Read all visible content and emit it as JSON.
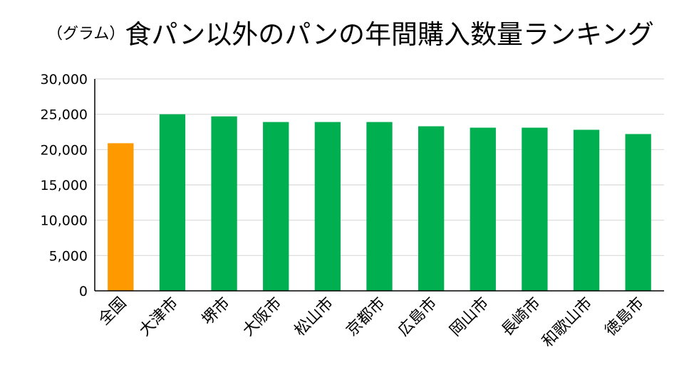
{
  "chart_data": {
    "type": "bar",
    "title": "食パン以外のパンの年間購入数量ランキング",
    "unit_label": "（グラム）",
    "xlabel": "",
    "ylabel": "",
    "ylim": [
      0,
      30000
    ],
    "yticks": [
      0,
      5000,
      10000,
      15000,
      20000,
      25000,
      30000
    ],
    "grid": true,
    "categories": [
      "全国",
      "大津市",
      "堺市",
      "大阪市",
      "松山市",
      "京都市",
      "広島市",
      "岡山市",
      "長崎市",
      "和歌山市",
      "徳島市"
    ],
    "values": [
      20900,
      25000,
      24700,
      23900,
      23900,
      23900,
      23300,
      23100,
      23100,
      22800,
      22200
    ],
    "colors": [
      "#FF9900",
      "#00B050",
      "#00B050",
      "#00B050",
      "#00B050",
      "#00B050",
      "#00B050",
      "#00B050",
      "#00B050",
      "#00B050",
      "#00B050"
    ]
  }
}
